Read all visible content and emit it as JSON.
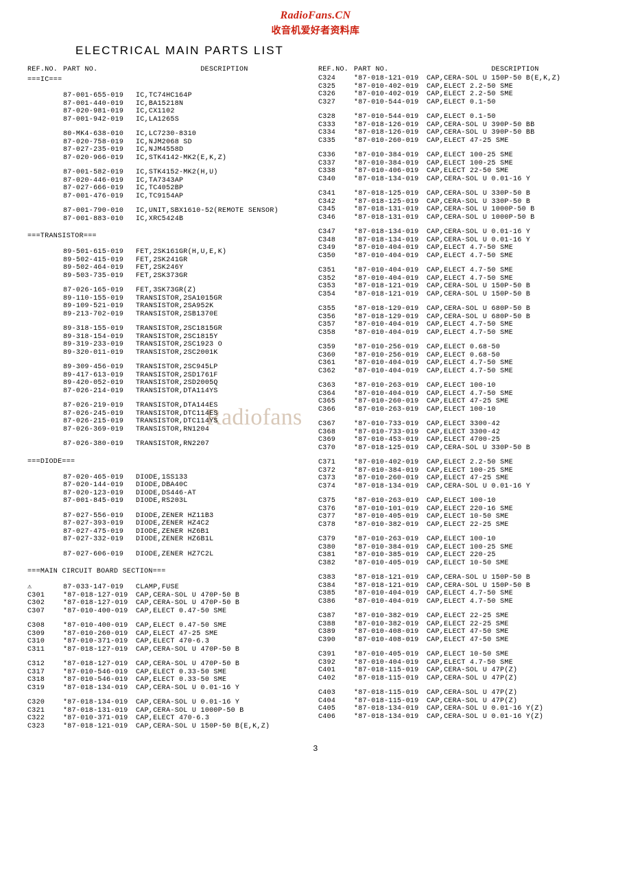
{
  "header": {
    "site": "RadioFans.CN",
    "cn": "收音机爱好者资料库",
    "title": "ELECTRICAL  MAIN  PARTS  LIST"
  },
  "colhead": {
    "ref": "REF.NO.",
    "part": "PART NO.",
    "desc": "DESCRIPTION"
  },
  "watermark": "Radiofans",
  "pagenum": "3",
  "left": [
    {
      "type": "section",
      "text": "===IC==="
    },
    {
      "type": "gap"
    },
    {
      "ref": "",
      "part": "87-001-655-019",
      "desc": "IC,TC74HC164P"
    },
    {
      "ref": "",
      "part": "87-001-440-019",
      "desc": "IC,BA15218N"
    },
    {
      "ref": "",
      "part": "87-020-981-019",
      "desc": "IC,CX1102"
    },
    {
      "ref": "",
      "part": "87-001-942-019",
      "desc": "IC,LA1265S"
    },
    {
      "type": "gap"
    },
    {
      "ref": "",
      "part": "80-MK4-638-010",
      "desc": "IC,LC7230-8310"
    },
    {
      "ref": "",
      "part": "87-020-758-019",
      "desc": "IC,NJM2068 SD"
    },
    {
      "ref": "",
      "part": "87-027-235-019",
      "desc": "IC,NJM4558D"
    },
    {
      "ref": "",
      "part": "87-020-966-019",
      "desc": "IC,STK4142-MK2(E,K,Z)"
    },
    {
      "type": "gap"
    },
    {
      "ref": "",
      "part": "87-001-582-019",
      "desc": "IC,STK4152-MK2(H,U)"
    },
    {
      "ref": "",
      "part": "87-020-446-019",
      "desc": "IC,TA7343AP"
    },
    {
      "ref": "",
      "part": "87-027-666-019",
      "desc": "IC,TC4052BP"
    },
    {
      "ref": "",
      "part": "87-001-476-019",
      "desc": "IC,TC9154AP"
    },
    {
      "type": "gap"
    },
    {
      "ref": "",
      "part": "87-001-790-010",
      "desc": "IC,UNIT,SBX1610-52(REMOTE SENSOR)"
    },
    {
      "ref": "",
      "part": "87-001-883-010",
      "desc": "IC,XRC5424B"
    },
    {
      "type": "gap"
    },
    {
      "type": "section",
      "text": "===TRANSISTOR==="
    },
    {
      "type": "gap"
    },
    {
      "ref": "",
      "part": "89-501-615-019",
      "desc": "FET,2SK161GR(H,U,E,K)"
    },
    {
      "ref": "",
      "part": "89-502-415-019",
      "desc": "FET,2SK241GR"
    },
    {
      "ref": "",
      "part": "89-502-464-019",
      "desc": "FET,2SK246Y"
    },
    {
      "ref": "",
      "part": "89-503-735-019",
      "desc": "FET,2SK373GR"
    },
    {
      "type": "gap"
    },
    {
      "ref": "",
      "part": "87-026-165-019",
      "desc": "FET,3SK73GR(Z)"
    },
    {
      "ref": "",
      "part": "89-110-155-019",
      "desc": "TRANSISTOR,2SA1015GR"
    },
    {
      "ref": "",
      "part": "89-109-521-019",
      "desc": "TRANSISTOR,2SA952K"
    },
    {
      "ref": "",
      "part": "89-213-702-019",
      "desc": "TRANSISTOR,2SB1370E"
    },
    {
      "type": "gap"
    },
    {
      "ref": "",
      "part": "89-318-155-019",
      "desc": "TRANSISTOR,2SC1815GR"
    },
    {
      "ref": "",
      "part": "89-318-154-019",
      "desc": "TRANSISTOR,2SC1815Y"
    },
    {
      "ref": "",
      "part": "89-319-233-019",
      "desc": "TRANSISTOR,2SC1923 O"
    },
    {
      "ref": "",
      "part": "89-320-011-019",
      "desc": "TRANSISTOR,2SC2001K"
    },
    {
      "type": "gap"
    },
    {
      "ref": "",
      "part": "89-309-456-019",
      "desc": "TRANSISTOR,2SC945LP"
    },
    {
      "ref": "",
      "part": "89-417-613-019",
      "desc": "TRANSISTOR,2SD1761F"
    },
    {
      "ref": "",
      "part": "89-420-052-019",
      "desc": "TRANSISTOR,2SD2005Q"
    },
    {
      "ref": "",
      "part": "87-026-214-019",
      "desc": "TRANSISTOR,DTA114YS"
    },
    {
      "type": "gap"
    },
    {
      "ref": "",
      "part": "87-026-219-019",
      "desc": "TRANSISTOR,DTA144ES"
    },
    {
      "ref": "",
      "part": "87-026-245-019",
      "desc": "TRANSISTOR,DTC114ES"
    },
    {
      "ref": "",
      "part": "87-026-215-019",
      "desc": "TRANSISTOR,DTC114YS"
    },
    {
      "ref": "",
      "part": "87-026-369-019",
      "desc": "TRANSISTOR,RN1204"
    },
    {
      "type": "gap"
    },
    {
      "ref": "",
      "part": "87-026-380-019",
      "desc": "TRANSISTOR,RN2207"
    },
    {
      "type": "gap"
    },
    {
      "type": "section",
      "text": "===DIODE==="
    },
    {
      "type": "gap"
    },
    {
      "ref": "",
      "part": "87-020-465-019",
      "desc": "DIODE,1SS133"
    },
    {
      "ref": "",
      "part": "87-020-144-019",
      "desc": "DIODE,DBA40C"
    },
    {
      "ref": "",
      "part": "87-020-123-019",
      "desc": "DIODE,DS446-AT"
    },
    {
      "ref": "",
      "part": "87-001-845-019",
      "desc": "DIODE,RS203L"
    },
    {
      "type": "gap"
    },
    {
      "ref": "",
      "part": "87-027-556-019",
      "desc": "DIODE,ZENER HZ11B3"
    },
    {
      "ref": "",
      "part": "87-027-393-019",
      "desc": "DIODE,ZENER HZ4C2"
    },
    {
      "ref": "",
      "part": "87-027-475-019",
      "desc": "DIODE,ZENER HZ6B1"
    },
    {
      "ref": "",
      "part": "87-027-332-019",
      "desc": "DIODE,ZENER HZ6B1L"
    },
    {
      "type": "gap"
    },
    {
      "ref": "",
      "part": "87-027-606-019",
      "desc": "DIODE,ZENER HZ7C2L"
    },
    {
      "type": "gap"
    },
    {
      "type": "section",
      "text": "===MAIN CIRCUIT BOARD SECTION==="
    },
    {
      "type": "gap"
    },
    {
      "ref": "⚠",
      "part": "87-033-147-019",
      "desc": "CLAMP,FUSE"
    },
    {
      "ref": "C301",
      "part": "*87-018-127-019",
      "desc": "CAP,CERA-SOL U 470P-50 B"
    },
    {
      "ref": "C302",
      "part": "*87-018-127-019",
      "desc": "CAP,CERA-SOL U 470P-50 B"
    },
    {
      "ref": "C307",
      "part": "*87-010-400-019",
      "desc": "CAP,ELECT 0.47-50 SME"
    },
    {
      "type": "gap"
    },
    {
      "ref": "C308",
      "part": "*87-010-400-019",
      "desc": "CAP,ELECT 0.47-50 SME"
    },
    {
      "ref": "C309",
      "part": "*87-010-260-019",
      "desc": "CAP,ELECT 47-25 SME"
    },
    {
      "ref": "C310",
      "part": "*87-010-371-019",
      "desc": "CAP,ELECT 470-6.3"
    },
    {
      "ref": "C311",
      "part": "*87-018-127-019",
      "desc": "CAP,CERA-SOL U 470P-50 B"
    },
    {
      "type": "gap"
    },
    {
      "ref": "C312",
      "part": "*87-018-127-019",
      "desc": "CAP,CERA-SOL U 470P-50 B"
    },
    {
      "ref": "C317",
      "part": "*87-010-546-019",
      "desc": "CAP,ELECT 0.33-50 SME"
    },
    {
      "ref": "C318",
      "part": "*87-010-546-019",
      "desc": "CAP,ELECT 0.33-50 SME"
    },
    {
      "ref": "C319",
      "part": "*87-018-134-019",
      "desc": "CAP,CERA-SOL U 0.01-16 Y"
    },
    {
      "type": "gap"
    },
    {
      "ref": "C320",
      "part": "*87-018-134-019",
      "desc": "CAP,CERA-SOL U 0.01-16 Y"
    },
    {
      "ref": "C321",
      "part": "*87-018-131-019",
      "desc": "CAP,CERA-SOL U 1000P-50 B"
    },
    {
      "ref": "C322",
      "part": "*87-010-371-019",
      "desc": "CAP,ELECT 470-6.3"
    },
    {
      "ref": "C323",
      "part": "*87-018-121-019",
      "desc": "CAP,CERA-SOL U 150P-50 B(E,K,Z)"
    }
  ],
  "right": [
    {
      "ref": "C324",
      "part": "*87-018-121-019",
      "desc": "CAP,CERA-SOL U 150P-50 B(E,K,Z)"
    },
    {
      "ref": "C325",
      "part": "*87-010-402-019",
      "desc": "CAP,ELECT 2.2-50 SME"
    },
    {
      "ref": "C326",
      "part": "*87-010-402-019",
      "desc": "CAP,ELECT 2.2-50 SME"
    },
    {
      "ref": "C327",
      "part": "*87-010-544-019",
      "desc": "CAP,ELECT 0.1-50"
    },
    {
      "type": "gap"
    },
    {
      "ref": "C328",
      "part": "*87-010-544-019",
      "desc": "CAP,ELECT 0.1-50"
    },
    {
      "ref": "C333",
      "part": "*87-018-126-019",
      "desc": "CAP,CERA-SOL U 390P-50 BB"
    },
    {
      "ref": "C334",
      "part": "*87-018-126-019",
      "desc": "CAP,CERA-SOL U 390P-50 BB"
    },
    {
      "ref": "C335",
      "part": "*87-010-260-019",
      "desc": "CAP,ELECT 47-25 SME"
    },
    {
      "type": "gap"
    },
    {
      "ref": "C336",
      "part": "*87-010-384-019",
      "desc": "CAP,ELECT 100-25 SME"
    },
    {
      "ref": "C337",
      "part": "*87-010-384-019",
      "desc": "CAP,ELECT 100-25 SME"
    },
    {
      "ref": "C338",
      "part": "*87-010-406-019",
      "desc": "CAP,ELECT 22-50 SME"
    },
    {
      "ref": "C340",
      "part": "*87-018-134-019",
      "desc": "CAP,CERA-SOL U 0.01-16 Y"
    },
    {
      "type": "gap"
    },
    {
      "ref": "C341",
      "part": "*87-018-125-019",
      "desc": "CAP,CERA-SOL U 330P-50 B"
    },
    {
      "ref": "C342",
      "part": "*87-018-125-019",
      "desc": "CAP,CERA-SOL U 330P-50 B"
    },
    {
      "ref": "C345",
      "part": "*87-018-131-019",
      "desc": "CAP,CERA-SOL U 1000P-50 B"
    },
    {
      "ref": "C346",
      "part": "*87-018-131-019",
      "desc": "CAP,CERA-SOL U 1000P-50 B"
    },
    {
      "type": "gap"
    },
    {
      "ref": "C347",
      "part": "*87-018-134-019",
      "desc": "CAP,CERA-SOL U 0.01-16 Y"
    },
    {
      "ref": "C348",
      "part": "*87-018-134-019",
      "desc": "CAP,CERA-SOL U 0.01-16 Y"
    },
    {
      "ref": "C349",
      "part": "*87-010-404-019",
      "desc": "CAP,ELECT 4.7-50 SME"
    },
    {
      "ref": "C350",
      "part": "*87-010-404-019",
      "desc": "CAP,ELECT 4.7-50 SME"
    },
    {
      "type": "gap"
    },
    {
      "ref": "C351",
      "part": "*87-010-404-019",
      "desc": "CAP,ELECT 4.7-50 SME"
    },
    {
      "ref": "C352",
      "part": "*87-010-404-019",
      "desc": "CAP,ELECT 4.7-50 SME"
    },
    {
      "ref": "C353",
      "part": "*87-018-121-019",
      "desc": "CAP,CERA-SOL U 150P-50 B"
    },
    {
      "ref": "C354",
      "part": "*87-018-121-019",
      "desc": "CAP,CERA-SOL U 150P-50 B"
    },
    {
      "type": "gap"
    },
    {
      "ref": "C355",
      "part": "*87-018-129-019",
      "desc": "CAP,CERA-SOL U 680P-50 B"
    },
    {
      "ref": "C356",
      "part": "*87-018-129-019",
      "desc": "CAP,CERA-SOL U 680P-50 B"
    },
    {
      "ref": "C357",
      "part": "*87-010-404-019",
      "desc": "CAP,ELECT 4.7-50 SME"
    },
    {
      "ref": "C358",
      "part": "*87-010-404-019",
      "desc": "CAP,ELECT 4.7-50 SME"
    },
    {
      "type": "gap"
    },
    {
      "ref": "C359",
      "part": "*87-010-256-019",
      "desc": "CAP,ELECT 0.68-50"
    },
    {
      "ref": "C360",
      "part": "*87-010-256-019",
      "desc": "CAP,ELECT 0.68-50"
    },
    {
      "ref": "C361",
      "part": "*87-010-404-019",
      "desc": "CAP,ELECT 4.7-50 SME"
    },
    {
      "ref": "C362",
      "part": "*87-010-404-019",
      "desc": "CAP,ELECT 4.7-50 SME"
    },
    {
      "type": "gap"
    },
    {
      "ref": "C363",
      "part": "*87-010-263-019",
      "desc": "CAP,ELECT 100-10"
    },
    {
      "ref": "C364",
      "part": "*87-010-404-019",
      "desc": "CAP,ELECT 4.7-50 SME"
    },
    {
      "ref": "C365",
      "part": "*87-010-260-019",
      "desc": "CAP,ELECT 47-25 SME"
    },
    {
      "ref": "C366",
      "part": "*87-010-263-019",
      "desc": "CAP,ELECT 100-10"
    },
    {
      "type": "gap"
    },
    {
      "ref": "C367",
      "part": "*87-010-733-019",
      "desc": "CAP,ELECT 3300-42"
    },
    {
      "ref": "C368",
      "part": "*87-010-733-019",
      "desc": "CAP,ELECT 3300-42"
    },
    {
      "ref": "C369",
      "part": "*87-010-453-019",
      "desc": "CAP,ELECT 4700-25"
    },
    {
      "ref": "C370",
      "part": "*87-018-125-019",
      "desc": "CAP,CERA-SOL U 330P-50 B"
    },
    {
      "type": "gap"
    },
    {
      "ref": "C371",
      "part": "*87-010-402-019",
      "desc": "CAP,ELECT 2.2-50 SME"
    },
    {
      "ref": "C372",
      "part": "*87-010-384-019",
      "desc": "CAP,ELECT 100-25 SME"
    },
    {
      "ref": "C373",
      "part": "*87-010-260-019",
      "desc": "CAP,ELECT 47-25 SME"
    },
    {
      "ref": "C374",
      "part": "*87-018-134-019",
      "desc": "CAP,CERA-SOL U 0.01-16 Y"
    },
    {
      "type": "gap"
    },
    {
      "ref": "C375",
      "part": "*87-010-263-019",
      "desc": "CAP,ELECT 100-10"
    },
    {
      "ref": "C376",
      "part": "*87-010-101-019",
      "desc": "CAP,ELECT 220-16 SME"
    },
    {
      "ref": "C377",
      "part": "*87-010-405-019",
      "desc": "CAP,ELECT 10-50 SME"
    },
    {
      "ref": "C378",
      "part": "*87-010-382-019",
      "desc": "CAP,ELECT 22-25 SME"
    },
    {
      "type": "gap"
    },
    {
      "ref": "C379",
      "part": "*87-010-263-019",
      "desc": "CAP,ELECT 100-10"
    },
    {
      "ref": "C380",
      "part": "*87-010-384-019",
      "desc": "CAP,ELECT 100-25 SME"
    },
    {
      "ref": "C381",
      "part": "*87-010-385-019",
      "desc": "CAP,ELECT 220-25"
    },
    {
      "ref": "C382",
      "part": "*87-010-405-019",
      "desc": "CAP,ELECT 10-50 SME"
    },
    {
      "type": "gap"
    },
    {
      "ref": "C383",
      "part": "*87-018-121-019",
      "desc": "CAP,CERA-SOL U 150P-50 B"
    },
    {
      "ref": "C384",
      "part": "*87-018-121-019",
      "desc": "CAP,CERA-SOL U 150P-50 B"
    },
    {
      "ref": "C385",
      "part": "*87-010-404-019",
      "desc": "CAP,ELECT 4.7-50 SME"
    },
    {
      "ref": "C386",
      "part": "*87-010-404-019",
      "desc": "CAP,ELECT 4.7-50 SME"
    },
    {
      "type": "gap"
    },
    {
      "ref": "C387",
      "part": "*87-010-382-019",
      "desc": "CAP,ELECT 22-25 SME"
    },
    {
      "ref": "C388",
      "part": "*87-010-382-019",
      "desc": "CAP,ELECT 22-25 SME"
    },
    {
      "ref": "C389",
      "part": "*87-010-408-019",
      "desc": "CAP,ELECT 47-50 SME"
    },
    {
      "ref": "C390",
      "part": "*87-010-408-019",
      "desc": "CAP,ELECT 47-50 SME"
    },
    {
      "type": "gap"
    },
    {
      "ref": "C391",
      "part": "*87-010-405-019",
      "desc": "CAP,ELECT 10-50 SME"
    },
    {
      "ref": "C392",
      "part": "*87-010-404-019",
      "desc": "CAP,ELECT 4.7-50 SME"
    },
    {
      "ref": "C401",
      "part": "*87-018-115-019",
      "desc": "CAP,CERA-SOL U 47P(Z)"
    },
    {
      "ref": "C402",
      "part": "*87-018-115-019",
      "desc": "CAP,CERA-SOL U 47P(Z)"
    },
    {
      "type": "gap"
    },
    {
      "ref": "C403",
      "part": "*87-018-115-019",
      "desc": "CAP,CERA-SOL U 47P(Z)"
    },
    {
      "ref": "C404",
      "part": "*87-018-115-019",
      "desc": "CAP,CERA-SOL U 47P(Z)"
    },
    {
      "ref": "C405",
      "part": "*87-018-134-019",
      "desc": "CAP,CERA-SOL U 0.01-16 Y(Z)"
    },
    {
      "ref": "C406",
      "part": "*87-018-134-019",
      "desc": "CAP,CERA-SOL U 0.01-16 Y(Z)"
    }
  ]
}
